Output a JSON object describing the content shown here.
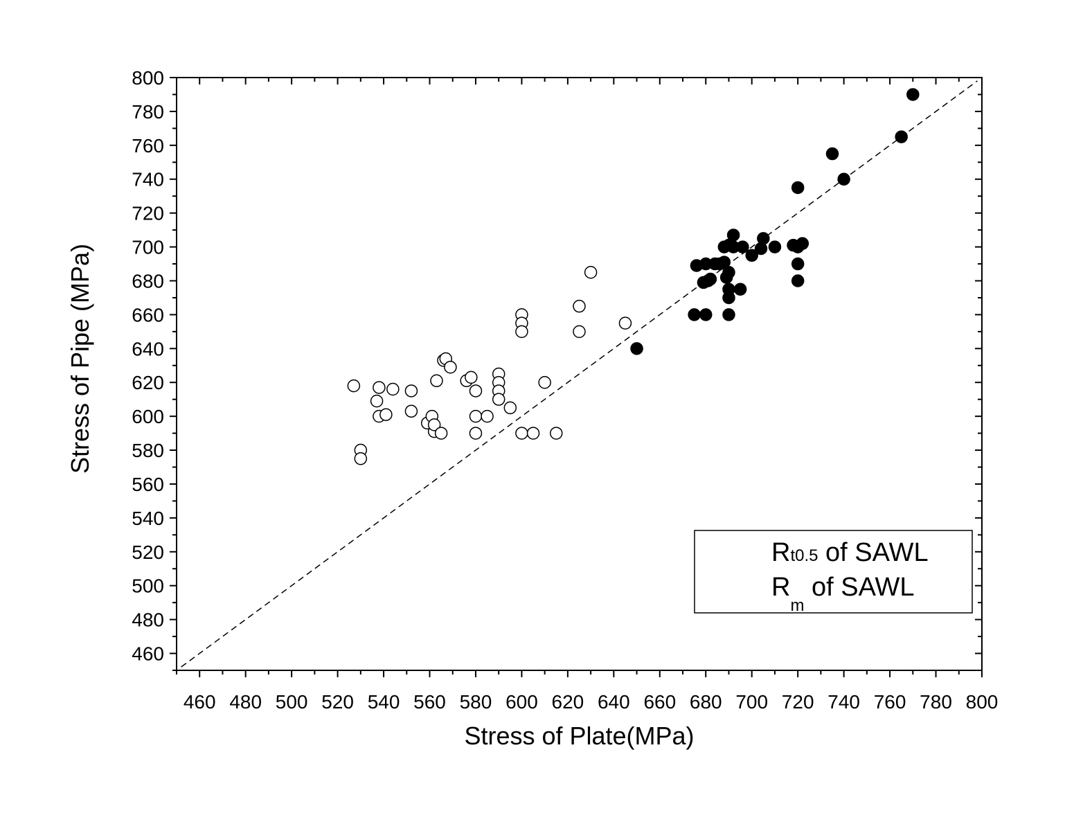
{
  "chart_data": {
    "type": "scatter",
    "xlabel": "Stress of Plate(MPa)",
    "ylabel": "Stress of Pipe (MPa)",
    "xlim": [
      450,
      800
    ],
    "ylim": [
      450,
      800
    ],
    "x_ticks": [
      460,
      480,
      500,
      520,
      540,
      560,
      580,
      600,
      620,
      640,
      660,
      680,
      700,
      720,
      740,
      760,
      780,
      800
    ],
    "y_ticks": [
      460,
      480,
      500,
      520,
      540,
      560,
      580,
      600,
      620,
      640,
      660,
      680,
      700,
      720,
      740,
      760,
      780,
      800
    ],
    "grid": false,
    "legend_position": "bottom-right",
    "reference_line": {
      "style": "dashed",
      "x": [
        452,
        798
      ],
      "y": [
        452,
        798
      ]
    },
    "series": [
      {
        "marker": "open-circle",
        "legend_label": {
          "base": "R",
          "sub": "t0.5",
          "suffix": " of SAWL"
        },
        "x": [
          527,
          530,
          530,
          537,
          538,
          538,
          541,
          544,
          552,
          552,
          559,
          561,
          562,
          562,
          563,
          565,
          566,
          567,
          569,
          576,
          578,
          580,
          580,
          580,
          585,
          590,
          590,
          590,
          590,
          595,
          600,
          600,
          600,
          600,
          605,
          610,
          615,
          625,
          625,
          630,
          645
        ],
        "y": [
          618,
          580,
          575,
          609,
          617,
          600,
          601,
          616,
          615,
          603,
          596,
          600,
          591,
          595,
          621,
          590,
          633,
          634,
          629,
          621,
          623,
          615,
          600,
          590,
          600,
          625,
          620,
          615,
          610,
          605,
          660,
          655,
          650,
          590,
          590,
          620,
          590,
          665,
          650,
          685,
          655
        ]
      },
      {
        "marker": "filled-circle",
        "legend_label": {
          "base": "R",
          "sub": "m",
          "suffix": " of SAWL"
        },
        "x": [
          650,
          675,
          676,
          679,
          680,
          680,
          681,
          682,
          684,
          686,
          688,
          688,
          689,
          690,
          690,
          690,
          690,
          690,
          692,
          692,
          695,
          696,
          700,
          704,
          705,
          710,
          718,
          720,
          720,
          720,
          720,
          722,
          735,
          740,
          765,
          770
        ],
        "y": [
          640,
          660,
          689,
          679,
          690,
          660,
          680,
          681,
          690,
          690,
          691,
          700,
          682,
          685,
          675,
          670,
          660,
          701,
          707,
          700,
          675,
          700,
          695,
          699,
          705,
          700,
          701,
          735,
          700,
          690,
          680,
          702,
          755,
          740,
          765,
          790
        ]
      }
    ]
  }
}
